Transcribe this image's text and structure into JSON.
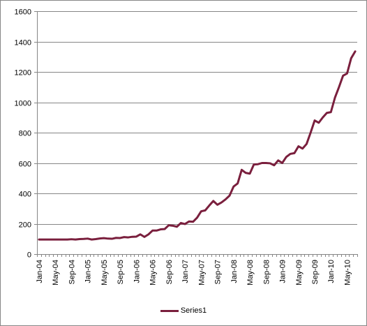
{
  "chart_data": {
    "type": "line",
    "title": "",
    "xlabel": "",
    "ylabel": "",
    "ylim": [
      0,
      1600
    ],
    "y_ticks": [
      0,
      200,
      400,
      600,
      800,
      1000,
      1200,
      1400,
      1600
    ],
    "grid": "horizontal",
    "legend": "bottom",
    "x": [
      "Jan-04",
      "Feb-04",
      "Mar-04",
      "Apr-04",
      "May-04",
      "Jun-04",
      "Jul-04",
      "Aug-04",
      "Sep-04",
      "Oct-04",
      "Nov-04",
      "Dec-04",
      "Jan-05",
      "Feb-05",
      "Mar-05",
      "Apr-05",
      "May-05",
      "Jun-05",
      "Jul-05",
      "Aug-05",
      "Sep-05",
      "Oct-05",
      "Nov-05",
      "Dec-05",
      "Jan-06",
      "Feb-06",
      "Mar-06",
      "Apr-06",
      "May-06",
      "Jun-06",
      "Jul-06",
      "Aug-06",
      "Sep-06",
      "Oct-06",
      "Nov-06",
      "Dec-06",
      "Jan-07",
      "Feb-07",
      "Mar-07",
      "Apr-07",
      "May-07",
      "Jun-07",
      "Jul-07",
      "Aug-07",
      "Sep-07",
      "Oct-07",
      "Nov-07",
      "Dec-07",
      "Jan-08",
      "Feb-08",
      "Mar-08",
      "Apr-08",
      "May-08",
      "Jun-08",
      "Jul-08",
      "Aug-08",
      "Sep-08",
      "Oct-08",
      "Nov-08",
      "Dec-08",
      "Jan-09",
      "Feb-09",
      "Mar-09",
      "Apr-09",
      "May-09",
      "Jun-09",
      "Jul-09",
      "Aug-09",
      "Sep-09",
      "Oct-09",
      "Nov-09",
      "Dec-09",
      "Jan-10",
      "Feb-10",
      "Mar-10",
      "Apr-10",
      "May-10",
      "Jun-10",
      "Jul-10"
    ],
    "x_tick_labels": [
      "Jan-04",
      "May-04",
      "Sep-04",
      "Jan-05",
      "May-05",
      "Sep-05",
      "Jan-06",
      "May-06",
      "Sep-06",
      "Jan-07",
      "May-07",
      "Sep-07",
      "Jan-08",
      "May-08",
      "Sep-08",
      "Jan-09",
      "May-09",
      "Sep-09",
      "Jan-10",
      "May-10"
    ],
    "series": [
      {
        "name": "Series1",
        "color": "#7a1f3d",
        "values": [
          96,
          96,
          96,
          96,
          96,
          96,
          96,
          96,
          98,
          96,
          99,
          100,
          102,
          96,
          99,
          103,
          105,
          102,
          101,
          107,
          106,
          112,
          110,
          114,
          115,
          130,
          113,
          130,
          155,
          155,
          163,
          165,
          190,
          187,
          180,
          205,
          198,
          215,
          213,
          240,
          282,
          288,
          320,
          350,
          325,
          340,
          360,
          385,
          445,
          465,
          555,
          535,
          530,
          590,
          592,
          600,
          600,
          598,
          585,
          617,
          600,
          640,
          660,
          665,
          710,
          695,
          725,
          800,
          880,
          865,
          900,
          930,
          935,
          1030,
          1100,
          1175,
          1190,
          1290,
          1335
        ]
      }
    ]
  }
}
